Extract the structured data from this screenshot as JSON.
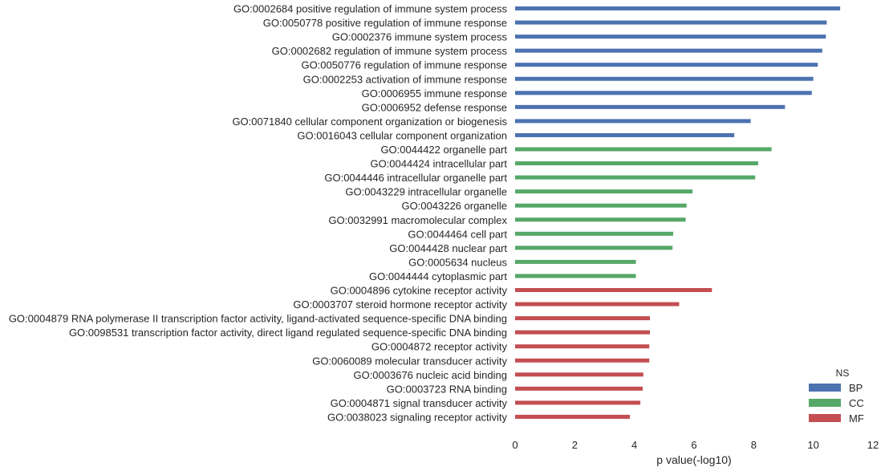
{
  "chart_data": {
    "type": "bar",
    "orientation": "horizontal",
    "xlabel": "p value(-log10)",
    "ylabel": "",
    "xlim": [
      0,
      12
    ],
    "xticks": [
      "0",
      "2",
      "4",
      "6",
      "8",
      "10",
      "12"
    ],
    "grid": false,
    "legend": {
      "title": "NS",
      "placement": "bottom-right",
      "entries": [
        {
          "name": "BP",
          "color": "#4c72b0"
        },
        {
          "name": "CC",
          "color": "#55a868"
        },
        {
          "name": "MF",
          "color": "#c44e52"
        }
      ]
    },
    "categories": [
      {
        "label": "GO:0002684 positive regulation of immune system process",
        "value": 10.9,
        "ns": "BP"
      },
      {
        "label": "GO:0050778 positive regulation of immune response",
        "value": 10.45,
        "ns": "BP"
      },
      {
        "label": "GO:0002376 immune system process",
        "value": 10.42,
        "ns": "BP"
      },
      {
        "label": "GO:0002682 regulation of immune system process",
        "value": 10.3,
        "ns": "BP"
      },
      {
        "label": "GO:0050776 regulation of immune response",
        "value": 10.15,
        "ns": "BP"
      },
      {
        "label": "GO:0002253 activation of immune response",
        "value": 10.0,
        "ns": "BP"
      },
      {
        "label": "GO:0006955 immune response",
        "value": 9.95,
        "ns": "BP"
      },
      {
        "label": "GO:0006952 defense response",
        "value": 9.05,
        "ns": "BP"
      },
      {
        "label": "GO:0071840 cellular component organization or biogenesis",
        "value": 7.9,
        "ns": "BP"
      },
      {
        "label": "GO:0016043 cellular component organization",
        "value": 7.35,
        "ns": "BP"
      },
      {
        "label": "GO:0044422 organelle part",
        "value": 8.6,
        "ns": "CC"
      },
      {
        "label": "GO:0044424 intracellular part",
        "value": 8.15,
        "ns": "CC"
      },
      {
        "label": "GO:0044446 intracellular organelle part",
        "value": 8.05,
        "ns": "CC"
      },
      {
        "label": "GO:0043229 intracellular organelle",
        "value": 5.95,
        "ns": "CC"
      },
      {
        "label": "GO:0043226 organelle",
        "value": 5.75,
        "ns": "CC"
      },
      {
        "label": "GO:0032991 macromolecular complex",
        "value": 5.72,
        "ns": "CC"
      },
      {
        "label": "GO:0044464 cell part",
        "value": 5.3,
        "ns": "CC"
      },
      {
        "label": "GO:0044428 nuclear part",
        "value": 5.28,
        "ns": "CC"
      },
      {
        "label": "GO:0005634 nucleus",
        "value": 4.05,
        "ns": "CC"
      },
      {
        "label": "GO:0044444 cytoplasmic part",
        "value": 4.05,
        "ns": "CC"
      },
      {
        "label": "GO:0004896 cytokine receptor activity",
        "value": 6.6,
        "ns": "MF"
      },
      {
        "label": "GO:0003707 steroid hormone receptor activity",
        "value": 5.5,
        "ns": "MF"
      },
      {
        "label": "GO:0004879 RNA polymerase II transcription factor activity, ligand-activated sequence-specific DNA binding",
        "value": 4.52,
        "ns": "MF"
      },
      {
        "label": "GO:0098531 transcription factor activity, direct ligand regulated sequence-specific DNA binding",
        "value": 4.52,
        "ns": "MF"
      },
      {
        "label": "GO:0004872 receptor activity",
        "value": 4.5,
        "ns": "MF"
      },
      {
        "label": "GO:0060089 molecular transducer activity",
        "value": 4.5,
        "ns": "MF"
      },
      {
        "label": "GO:0003676 nucleic acid binding",
        "value": 4.3,
        "ns": "MF"
      },
      {
        "label": "GO:0003723 RNA binding",
        "value": 4.28,
        "ns": "MF"
      },
      {
        "label": "GO:0004871 signal transducer activity",
        "value": 4.2,
        "ns": "MF"
      },
      {
        "label": "GO:0038023 signaling receptor activity",
        "value": 3.85,
        "ns": "MF"
      }
    ]
  }
}
